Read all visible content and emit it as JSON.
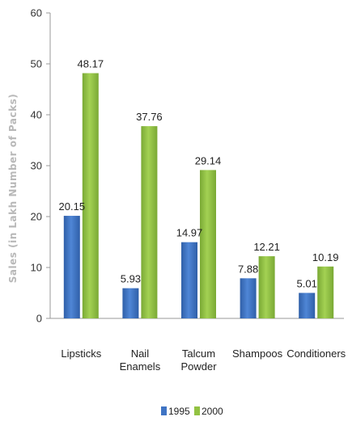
{
  "chart_data": {
    "type": "bar",
    "title": "",
    "xlabel": "",
    "ylabel": "Sales (in Lakh Number of Packs)",
    "ylim": [
      0,
      60
    ],
    "yticks": [
      0,
      10,
      20,
      30,
      40,
      50,
      60
    ],
    "grid": false,
    "legend_position": "bottom",
    "categories": [
      [
        "Lipsticks"
      ],
      [
        "Nail",
        "Enamels"
      ],
      [
        "Talcum",
        "Powder"
      ],
      [
        "Shampoos"
      ],
      [
        "Conditioners"
      ]
    ],
    "series": [
      {
        "name": "1995",
        "color": "#3f74c4",
        "values": [
          20.15,
          5.93,
          14.97,
          7.88,
          5.01
        ]
      },
      {
        "name": "2000",
        "color": "#92c242",
        "values": [
          48.17,
          37.76,
          29.14,
          12.21,
          10.19
        ]
      }
    ]
  }
}
